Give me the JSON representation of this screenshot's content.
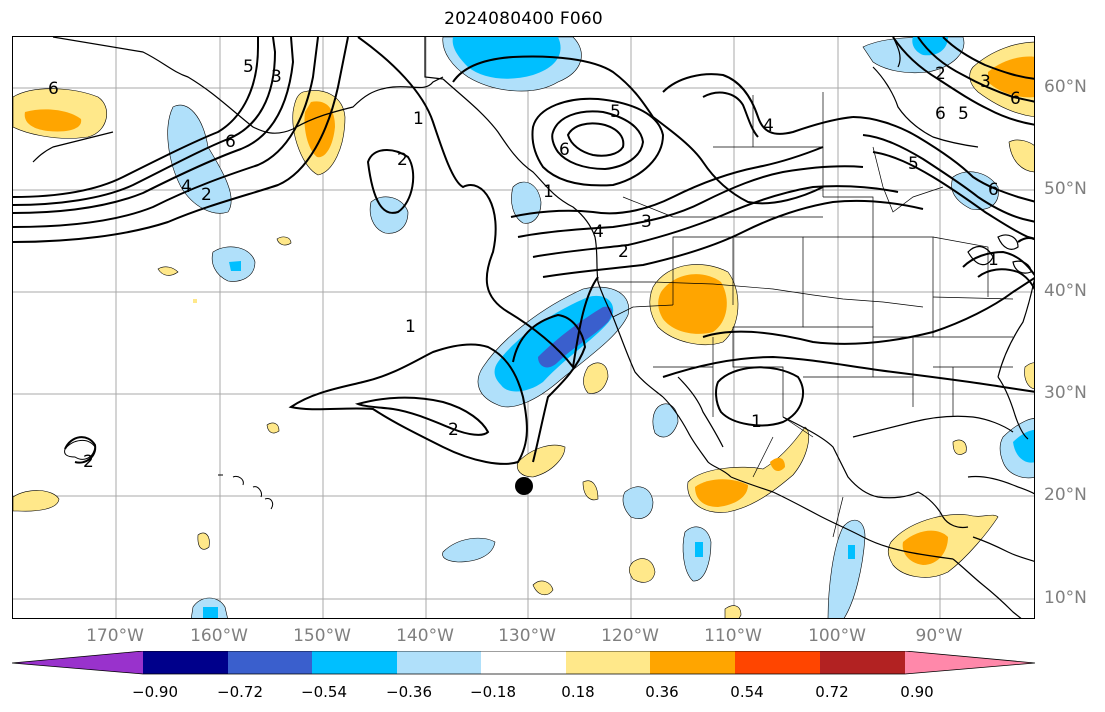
{
  "title": "2024080400 F060",
  "map": {
    "lat_labels": [
      "60°N",
      "50°N",
      "40°N",
      "30°N",
      "20°N",
      "10°N"
    ],
    "lon_labels": [
      "170°W",
      "160°W",
      "150°W",
      "140°W",
      "130°W",
      "120°W",
      "110°W",
      "100°W",
      "90°W"
    ],
    "contour_labels": [
      "6",
      "5",
      "3",
      "6",
      "4",
      "2",
      "1",
      "2",
      "1",
      "2",
      "1",
      "2",
      "5",
      "6",
      "4",
      "3",
      "2",
      "4",
      "5",
      "6",
      "5",
      "6",
      "2",
      "3",
      "6",
      "1",
      "1"
    ],
    "marker_icon": "black-dot-marker"
  },
  "colorbar": {
    "colors": [
      "#9932cc",
      "#00008b",
      "#3a5fcd",
      "#00bfff",
      "#b0e0fa",
      "#ffffff",
      "#ffe88a",
      "#ffa500",
      "#ff4500",
      "#b22222",
      "#ff88aa"
    ],
    "tick_labels": [
      "−0.90",
      "−0.72",
      "−0.54",
      "−0.36",
      "−0.18",
      "0.18",
      "0.36",
      "0.54",
      "0.72",
      "0.90"
    ]
  }
}
